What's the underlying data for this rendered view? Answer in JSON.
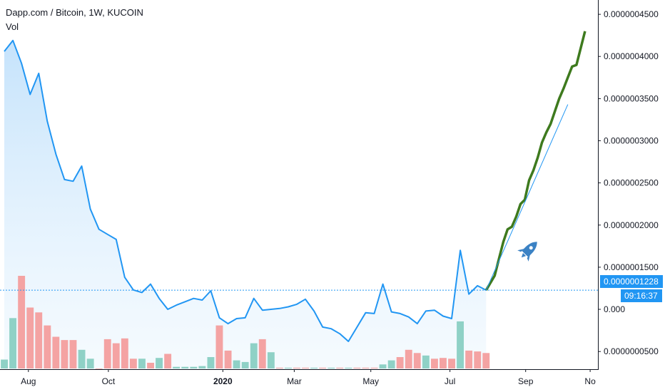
{
  "legend": {
    "title": "Dapp.com / Bitcoin, 1W, KUCOIN",
    "volume_label": "Vol"
  },
  "price_tag": {
    "value": "0.0000001228",
    "countdown": "09:16:37"
  },
  "colors": {
    "price_line": "#2196f3",
    "volume_up": "#8fd1c6",
    "volume_down": "#f4a3a3",
    "projection": "#3e7a1e",
    "trend_line": "#2196f3",
    "price_tag_bg": "#2196f3",
    "rocket": "#3b82c4"
  },
  "chart_data": {
    "type": "line",
    "title": "Dapp.com / Bitcoin, 1W, KUCOIN",
    "y_axis": {
      "position": "right",
      "range": [
        2.9e-08,
        4.67e-07
      ],
      "ticks": [
        5e-08,
        1e-07,
        1.5e-07,
        2e-07,
        2.5e-07,
        3e-07,
        3.5e-07,
        4e-07,
        4.5e-07
      ],
      "tick_labels": [
        "0.0000000500",
        "0.000",
        "0.0000001500",
        "0.0000002000",
        "0.0000002500",
        "0.0000003000",
        "0.0000003500",
        "0.0000004000",
        "0.0000004500"
      ]
    },
    "x_axis": {
      "unit": "weeks since first bar",
      "range": [
        -0.5,
        69.0
      ],
      "labels": [
        {
          "text": "Aug",
          "x": 2.8,
          "bold": false
        },
        {
          "text": "Oct",
          "x": 12.1,
          "bold": false
        },
        {
          "text": "2020",
          "x": 25.4,
          "bold": true
        },
        {
          "text": "Mar",
          "x": 33.7,
          "bold": false
        },
        {
          "text": "May",
          "x": 42.6,
          "bold": false
        },
        {
          "text": "Jul",
          "x": 51.8,
          "bold": false
        },
        {
          "text": "Sep",
          "x": 60.6,
          "bold": false
        },
        {
          "text": "No",
          "x": 68.1,
          "bold": false
        }
      ]
    },
    "series": [
      {
        "name": "Dapp.com / Bitcoin",
        "kind": "price",
        "x": [
          0,
          1,
          2,
          3,
          4,
          5,
          6,
          7,
          8,
          9,
          10,
          11,
          12,
          13,
          14,
          15,
          16,
          17,
          18,
          19,
          20,
          21,
          22,
          23,
          24,
          25,
          26,
          27,
          28,
          29,
          30,
          31,
          32,
          33,
          34,
          35,
          36,
          37,
          38,
          39,
          40,
          41,
          42,
          43,
          44,
          45,
          46,
          47,
          48,
          49,
          50,
          51,
          52,
          53,
          54,
          55,
          56
        ],
        "values": [
          4.06e-07,
          4.19e-07,
          3.92e-07,
          3.55e-07,
          3.8e-07,
          3.23e-07,
          2.84e-07,
          2.54e-07,
          2.52e-07,
          2.7e-07,
          2.19e-07,
          1.95e-07,
          1.89e-07,
          1.83e-07,
          1.38e-07,
          1.23e-07,
          1.2e-07,
          1.3e-07,
          1.13e-07,
          1e-07,
          1.05e-07,
          1.09e-07,
          1.13e-07,
          1.11e-07,
          1.22e-07,
          9e-08,
          8.3e-08,
          8.9e-08,
          9e-08,
          1.13e-07,
          9.9e-08,
          1e-07,
          1.01e-07,
          1.03e-07,
          1.06e-07,
          1.12e-07,
          9.8e-08,
          7.9e-08,
          7.7e-08,
          7.1e-08,
          6.2e-08,
          7.9e-08,
          9.6e-08,
          9.5e-08,
          1.3e-07,
          9.7e-08,
          9.5e-08,
          9.1e-08,
          8.3e-08,
          9.8e-08,
          9.9e-08,
          9.2e-08,
          8.9e-08,
          1.7e-07,
          1.18e-07,
          1.28e-07,
          1.228e-07
        ]
      },
      {
        "name": "Volume",
        "kind": "volume",
        "x": [
          0,
          1,
          2,
          3,
          4,
          5,
          6,
          7,
          8,
          9,
          10,
          11,
          12,
          13,
          14,
          15,
          16,
          17,
          18,
          19,
          20,
          21,
          22,
          23,
          24,
          25,
          26,
          27,
          28,
          29,
          30,
          31,
          32,
          33,
          34,
          35,
          36,
          37,
          38,
          39,
          40,
          41,
          42,
          43,
          44,
          45,
          46,
          47,
          48,
          49,
          50,
          51,
          52,
          53,
          54,
          55,
          56
        ],
        "values": [
          11,
          62,
          114,
          75,
          69,
          53,
          39,
          35,
          35,
          23,
          12,
          0,
          36,
          31,
          37,
          12,
          12,
          7,
          13,
          18,
          2,
          2,
          2,
          3,
          14,
          53,
          22,
          10,
          8,
          31,
          36,
          20,
          1,
          1,
          1,
          1,
          1,
          1,
          1,
          1,
          1,
          1,
          1,
          1,
          5,
          10,
          14,
          23,
          19,
          16,
          12,
          13,
          12,
          58,
          22,
          21,
          19
        ],
        "direction": [
          "up",
          "up",
          "down",
          "down",
          "down",
          "down",
          "down",
          "down",
          "down",
          "up",
          "up",
          "down",
          "down",
          "down",
          "down",
          "down",
          "up",
          "down",
          "up",
          "down",
          "up",
          "up",
          "up",
          "up",
          "up",
          "down",
          "down",
          "up",
          "up",
          "up",
          "down",
          "up",
          "down",
          "up",
          "down",
          "down",
          "up",
          "down",
          "up",
          "down",
          "up",
          "down",
          "down",
          "down",
          "up",
          "up",
          "down",
          "down",
          "down",
          "up",
          "down",
          "down",
          "down",
          "up",
          "down",
          "down",
          "down"
        ]
      },
      {
        "name": "Projection",
        "kind": "drawing",
        "x": [
          56,
          57,
          57.5,
          58,
          58.5,
          59,
          59.5,
          60,
          60.5,
          61,
          61.5,
          62,
          62.5,
          63,
          63.5,
          64,
          64.5,
          65,
          65.5,
          66,
          66.5,
          67,
          67.5
        ],
        "values": [
          1.228e-07,
          1.4e-07,
          1.6e-07,
          1.8e-07,
          1.95e-07,
          1.98e-07,
          2.1e-07,
          2.25e-07,
          2.3e-07,
          2.53e-07,
          2.65e-07,
          2.8e-07,
          2.98e-07,
          3.1e-07,
          3.2e-07,
          3.35e-07,
          3.5e-07,
          3.62e-07,
          3.75e-07,
          3.88e-07,
          3.9e-07,
          4.1e-07,
          4.3e-07
        ]
      },
      {
        "name": "Trend",
        "kind": "drawing",
        "x": [
          56,
          65.5
        ],
        "values": [
          1.228e-07,
          3.43e-07
        ]
      }
    ],
    "last_price_line": 1.228e-07,
    "grid": false,
    "legend_position": "top-left"
  }
}
